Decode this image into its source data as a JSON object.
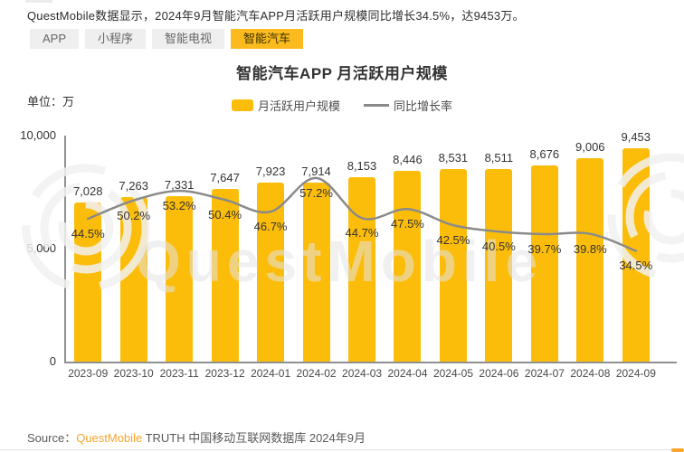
{
  "summary": "QuestMobile数据显示，2024年9月智能汽车APP月活跃用户规模同比增长34.5%，达9453万。",
  "tabs": [
    {
      "id": "app",
      "label": "APP",
      "active": false
    },
    {
      "id": "mini-program",
      "label": "小程序",
      "active": false
    },
    {
      "id": "smart-tv",
      "label": "智能电视",
      "active": false
    },
    {
      "id": "smart-car",
      "label": "智能汽车",
      "active": true
    }
  ],
  "chart": {
    "title": "智能汽车APP 月活跃用户规模",
    "unit_label": "单位：万",
    "legend": [
      {
        "type": "bar",
        "label": "月活跃用户规模"
      },
      {
        "type": "line",
        "label": "同比增长率"
      }
    ]
  },
  "chart_data": {
    "type": "bar+line",
    "title": "智能汽车APP 月活跃用户规模",
    "ylabel": "单位：万",
    "categories": [
      "2023-09",
      "2023-10",
      "2023-11",
      "2023-12",
      "2024-01",
      "2024-02",
      "2024-03",
      "2024-04",
      "2024-05",
      "2024-06",
      "2024-07",
      "2024-08",
      "2024-09"
    ],
    "series": [
      {
        "name": "月活跃用户规模",
        "type": "bar",
        "values": [
          7028,
          7263,
          7331,
          7647,
          7923,
          7914,
          8153,
          8446,
          8531,
          8511,
          8676,
          9006,
          9453
        ]
      },
      {
        "name": "同比增长率",
        "type": "line",
        "unit": "%",
        "values": [
          44.5,
          50.2,
          53.2,
          50.4,
          46.7,
          57.2,
          44.7,
          47.5,
          42.5,
          40.5,
          39.7,
          39.8,
          34.5
        ]
      }
    ],
    "ylim": [
      0,
      10000
    ],
    "y_ticks": [
      0,
      5000,
      10000
    ],
    "secondary_ylim": [
      0,
      70.4
    ],
    "grid": false,
    "legend_position": "top"
  },
  "watermark_text": "QuestMobile",
  "source": {
    "prefix": "Source：",
    "brand": "QuestMobile",
    "rest": " TRUTH 中国移动互联网数据库 2024年9月"
  },
  "colors": {
    "bar": "#fcbd0a",
    "line": "#8a8a8a",
    "tab_active_bg": "#fbbb1e",
    "brand_orange": "#f7a52b"
  }
}
